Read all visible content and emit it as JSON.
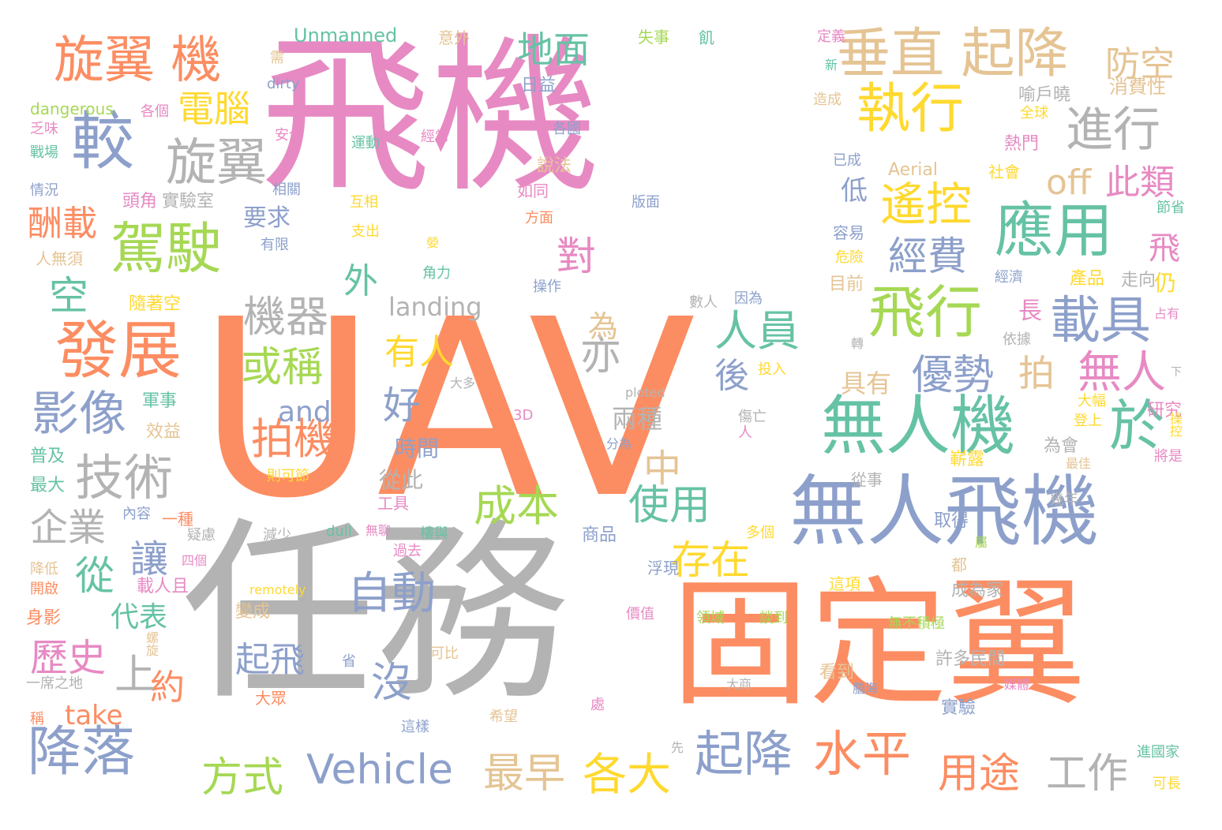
{
  "colors": {
    "background": "#ffffff",
    "pink": "#e78ac3",
    "orange": "#fc8d62",
    "gray": "#b3b3b3",
    "blue": "#8da0cb",
    "teal": "#66c2a5",
    "green": "#a6d854",
    "yellow": "#ffd92f",
    "tan": "#e5c494"
  },
  "words": [
    {
      "text": "飛機",
      "color": "pink"
    },
    {
      "text": "UAV",
      "color": "orange"
    },
    {
      "text": "任務",
      "color": "gray"
    },
    {
      "text": "固定翼",
      "color": "orange"
    },
    {
      "text": "無人飛機",
      "color": "blue"
    },
    {
      "text": "無人機",
      "color": "teal"
    },
    {
      "text": "垂直 起降",
      "color": "tan"
    },
    {
      "text": "旋翼 機",
      "color": "orange"
    },
    {
      "text": "較",
      "color": "blue"
    },
    {
      "text": "旋翼",
      "color": "gray"
    },
    {
      "text": "駕駛",
      "color": "green"
    },
    {
      "text": "發展",
      "color": "orange"
    },
    {
      "text": "執行",
      "color": "yellow"
    },
    {
      "text": "應用",
      "color": "teal"
    },
    {
      "text": "飛行",
      "color": "green"
    },
    {
      "text": "載具",
      "color": "blue"
    },
    {
      "text": "遙控",
      "color": "yellow"
    },
    {
      "text": "進行",
      "color": "gray"
    },
    {
      "text": "於",
      "color": "teal"
    },
    {
      "text": "影像",
      "color": "blue"
    },
    {
      "text": "技術",
      "color": "gray"
    },
    {
      "text": "降落",
      "color": "blue"
    },
    {
      "text": "起降",
      "color": "blue"
    },
    {
      "text": "水平",
      "color": "orange"
    },
    {
      "text": "Vehicle",
      "color": "blue"
    },
    {
      "text": "方式",
      "color": "green"
    },
    {
      "text": "各大",
      "color": "yellow"
    },
    {
      "text": "最早",
      "color": "tan"
    },
    {
      "text": "用途",
      "color": "orange"
    },
    {
      "text": "工作",
      "color": "gray"
    },
    {
      "text": "自動",
      "color": "blue"
    },
    {
      "text": "拍機",
      "color": "orange"
    },
    {
      "text": "或稱",
      "color": "green"
    },
    {
      "text": "機器",
      "color": "gray"
    },
    {
      "text": "人員",
      "color": "teal"
    },
    {
      "text": "優勢",
      "color": "blue"
    },
    {
      "text": "無人",
      "color": "pink"
    },
    {
      "text": "成本",
      "color": "green"
    },
    {
      "text": "使用",
      "color": "teal"
    },
    {
      "text": "存在",
      "color": "yellow"
    },
    {
      "text": "經費",
      "color": "blue"
    },
    {
      "text": "電腦",
      "color": "yellow"
    },
    {
      "text": "地面",
      "color": "teal"
    },
    {
      "text": "防空",
      "color": "tan"
    },
    {
      "text": "off",
      "color": "tan"
    },
    {
      "text": "此類",
      "color": "pink"
    },
    {
      "text": "酬載",
      "color": "orange"
    },
    {
      "text": "企業",
      "color": "gray"
    },
    {
      "text": "歷史",
      "color": "pink"
    },
    {
      "text": "and",
      "color": "blue"
    },
    {
      "text": "有人",
      "color": "yellow"
    },
    {
      "text": "對",
      "color": "pink"
    },
    {
      "text": "亦",
      "color": "gray"
    },
    {
      "text": "好",
      "color": "blue"
    },
    {
      "text": "沒",
      "color": "blue"
    },
    {
      "text": "約",
      "color": "orange"
    },
    {
      "text": "上",
      "color": "gray"
    },
    {
      "text": "從",
      "color": "teal"
    },
    {
      "text": "讓",
      "color": "blue"
    },
    {
      "text": "空",
      "color": "teal"
    },
    {
      "text": "拍",
      "color": "tan"
    },
    {
      "text": "中",
      "color": "tan"
    },
    {
      "text": "外",
      "color": "teal"
    },
    {
      "text": "後",
      "color": "blue"
    },
    {
      "text": "為",
      "color": "tan"
    },
    {
      "text": "飛",
      "color": "pink"
    },
    {
      "text": "take",
      "color": "orange"
    },
    {
      "text": "landing",
      "color": "gray"
    },
    {
      "text": "起飛",
      "color": "blue"
    },
    {
      "text": "代表",
      "color": "teal"
    },
    {
      "text": "兩種",
      "color": "gray"
    },
    {
      "text": "時間",
      "color": "blue"
    },
    {
      "text": "從此",
      "color": "gray"
    },
    {
      "text": "具有",
      "color": "tan"
    },
    {
      "text": "要求",
      "color": "blue"
    },
    {
      "text": "長",
      "color": "pink"
    },
    {
      "text": "低",
      "color": "blue"
    },
    {
      "text": "仍",
      "color": "yellow"
    },
    {
      "text": "Unmanned",
      "color": "teal"
    },
    {
      "text": "意外",
      "color": "tan"
    },
    {
      "text": "失事",
      "color": "green"
    },
    {
      "text": "飢",
      "color": "teal"
    },
    {
      "text": "定義",
      "color": "pink"
    },
    {
      "text": "需",
      "color": "tan"
    },
    {
      "text": "新",
      "color": "teal"
    },
    {
      "text": "dirty",
      "color": "blue"
    },
    {
      "text": "dangerous",
      "color": "green"
    },
    {
      "text": "各個",
      "color": "pink"
    },
    {
      "text": "喻戶曉",
      "color": "gray"
    },
    {
      "text": "消費性",
      "color": "tan"
    },
    {
      "text": "造成",
      "color": "tan"
    },
    {
      "text": "全球",
      "color": "yellow"
    },
    {
      "text": "日益",
      "color": "blue"
    },
    {
      "text": "乏味",
      "color": "pink"
    },
    {
      "text": "戰場",
      "color": "teal"
    },
    {
      "text": "安全",
      "color": "pink"
    },
    {
      "text": "運動",
      "color": "teal"
    },
    {
      "text": "經常",
      "color": "pink"
    },
    {
      "text": "各國",
      "color": "blue"
    },
    {
      "text": "熱門",
      "color": "pink"
    },
    {
      "text": "說法",
      "color": "tan"
    },
    {
      "text": "已成",
      "color": "blue"
    },
    {
      "text": "Aerial",
      "color": "tan"
    },
    {
      "text": "社會",
      "color": "yellow"
    },
    {
      "text": "情況",
      "color": "blue"
    },
    {
      "text": "相關",
      "color": "blue"
    },
    {
      "text": "頭角",
      "color": "pink"
    },
    {
      "text": "實驗室",
      "color": "gray"
    },
    {
      "text": "如同",
      "color": "pink"
    },
    {
      "text": "互相",
      "color": "yellow"
    },
    {
      "text": "版面",
      "color": "blue"
    },
    {
      "text": "節省",
      "color": "teal"
    },
    {
      "text": "有限",
      "color": "blue"
    },
    {
      "text": "支出",
      "color": "yellow"
    },
    {
      "text": "方面",
      "color": "orange"
    },
    {
      "text": "人無須",
      "color": "tan"
    },
    {
      "text": "角力",
      "color": "teal"
    },
    {
      "text": "操作",
      "color": "blue"
    },
    {
      "text": "容易",
      "color": "blue"
    },
    {
      "text": "危險",
      "color": "yellow"
    },
    {
      "text": "目前",
      "color": "tan"
    },
    {
      "text": "經濟",
      "color": "blue"
    },
    {
      "text": "產品",
      "color": "yellow"
    },
    {
      "text": "走向",
      "color": "gray"
    },
    {
      "text": "隨著空",
      "color": "yellow"
    },
    {
      "text": "數人",
      "color": "gray"
    },
    {
      "text": "因為",
      "color": "blue"
    },
    {
      "text": "占有",
      "color": "pink"
    },
    {
      "text": "依據",
      "color": "gray"
    },
    {
      "text": "轉",
      "color": "gray"
    },
    {
      "text": "投入",
      "color": "yellow"
    },
    {
      "text": "大多",
      "color": "gray"
    },
    {
      "text": "軍事",
      "color": "teal"
    },
    {
      "text": "效益",
      "color": "tan"
    },
    {
      "text": "傷亡",
      "color": "gray"
    },
    {
      "text": "3D",
      "color": "pink"
    },
    {
      "text": "ploted",
      "color": "gray"
    },
    {
      "text": "研究",
      "color": "pink"
    },
    {
      "text": "操控",
      "color": "yellow"
    },
    {
      "text": "大幅",
      "color": "yellow"
    },
    {
      "text": "登上",
      "color": "yellow"
    },
    {
      "text": "下",
      "color": "gray"
    },
    {
      "text": "普及",
      "color": "teal"
    },
    {
      "text": "最大",
      "color": "teal"
    },
    {
      "text": "分為",
      "color": "blue"
    },
    {
      "text": "為會",
      "color": "gray"
    },
    {
      "text": "最佳",
      "color": "tan"
    },
    {
      "text": "將是",
      "color": "pink"
    },
    {
      "text": "則可節",
      "color": "yellow"
    },
    {
      "text": "工具",
      "color": "pink"
    },
    {
      "text": "從事",
      "color": "gray"
    },
    {
      "text": "嶄露",
      "color": "yellow"
    },
    {
      "text": "幾年",
      "color": "gray"
    },
    {
      "text": "內容",
      "color": "blue"
    },
    {
      "text": "一種",
      "color": "orange"
    },
    {
      "text": "疑慮",
      "color": "gray"
    },
    {
      "text": "減少",
      "color": "gray"
    },
    {
      "text": "dull",
      "color": "teal"
    },
    {
      "text": "無聊",
      "color": "pink"
    },
    {
      "text": "樓與",
      "color": "teal"
    },
    {
      "text": "商品",
      "color": "blue"
    },
    {
      "text": "多個",
      "color": "yellow"
    },
    {
      "text": "取得",
      "color": "blue"
    },
    {
      "text": "降低",
      "color": "tan"
    },
    {
      "text": "四個",
      "color": "pink"
    },
    {
      "text": "過去",
      "color": "pink"
    },
    {
      "text": "都",
      "color": "tan"
    },
    {
      "text": "開啟",
      "color": "orange"
    },
    {
      "text": "載人且",
      "color": "pink"
    },
    {
      "text": "remotely",
      "color": "yellow"
    },
    {
      "text": "浮現",
      "color": "blue"
    },
    {
      "text": "這項",
      "color": "yellow"
    },
    {
      "text": "成為家",
      "color": "gray"
    },
    {
      "text": "身影",
      "color": "orange"
    },
    {
      "text": "變成",
      "color": "tan"
    },
    {
      "text": "價值",
      "color": "pink"
    },
    {
      "text": "領域",
      "color": "green"
    },
    {
      "text": "談到",
      "color": "green"
    },
    {
      "text": "無不積極",
      "color": "green"
    },
    {
      "text": "螺旋",
      "color": "tan"
    },
    {
      "text": "省",
      "color": "blue"
    },
    {
      "text": "可比",
      "color": "tan"
    },
    {
      "text": "許多民間",
      "color": "gray"
    },
    {
      "text": "看到",
      "color": "tan"
    },
    {
      "text": "一席之地",
      "color": "gray"
    },
    {
      "text": "大眾",
      "color": "orange"
    },
    {
      "text": "大商",
      "color": "gray"
    },
    {
      "text": "媒體",
      "color": "pink"
    },
    {
      "text": "腦海",
      "color": "blue"
    },
    {
      "text": "處",
      "color": "pink"
    },
    {
      "text": "實驗",
      "color": "blue"
    },
    {
      "text": "稱",
      "color": "orange"
    },
    {
      "text": "這樣",
      "color": "blue"
    },
    {
      "text": "希望",
      "color": "tan"
    },
    {
      "text": "先",
      "color": "gray"
    },
    {
      "text": "進國家",
      "color": "teal"
    },
    {
      "text": "可長",
      "color": "yellow"
    },
    {
      "text": "人",
      "color": "pink"
    },
    {
      "text": "屬",
      "color": "green"
    },
    {
      "text": "嫈",
      "color": "yellow"
    }
  ]
}
